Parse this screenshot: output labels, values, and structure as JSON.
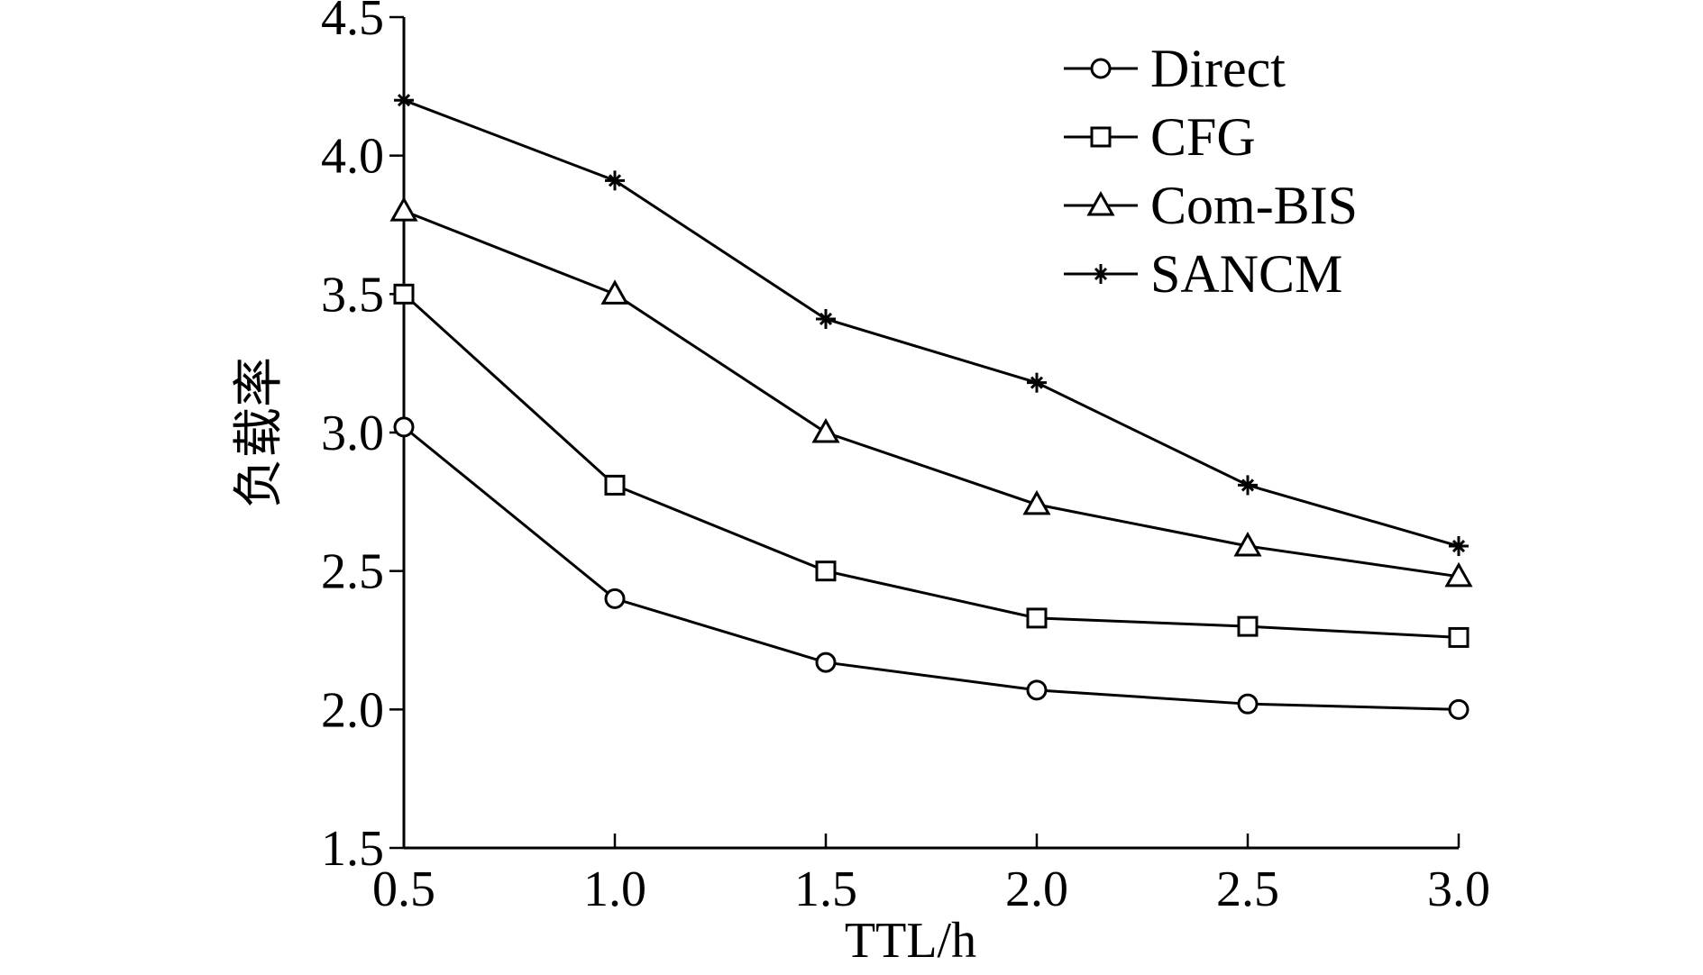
{
  "chart_data": {
    "type": "line",
    "title": "",
    "xlabel": "TTL/h",
    "ylabel": "负载率",
    "xlim": [
      0.5,
      3.0
    ],
    "ylim": [
      1.5,
      4.5
    ],
    "x": [
      0.5,
      1.0,
      1.5,
      2.0,
      2.5,
      3.0
    ],
    "x_ticks": [
      "0.5",
      "1.0",
      "1.5",
      "2.0",
      "2.5",
      "3.0"
    ],
    "y_ticks": [
      "1.5",
      "2.0",
      "2.5",
      "3.0",
      "3.5",
      "4.0",
      "4.5"
    ],
    "grid": false,
    "legend_position": "top-right",
    "series": [
      {
        "name": "Direct",
        "marker": "circle",
        "values": [
          3.02,
          2.4,
          2.17,
          2.07,
          2.02,
          2.0
        ]
      },
      {
        "name": "CFG",
        "marker": "square",
        "values": [
          3.5,
          2.81,
          2.5,
          2.33,
          2.3,
          2.26
        ]
      },
      {
        "name": "Com-BIS",
        "marker": "triangle",
        "values": [
          3.8,
          3.5,
          3.0,
          2.74,
          2.59,
          2.48
        ]
      },
      {
        "name": "SANCM",
        "marker": "star",
        "values": [
          4.2,
          3.91,
          3.41,
          3.18,
          2.81,
          2.59
        ]
      }
    ]
  }
}
